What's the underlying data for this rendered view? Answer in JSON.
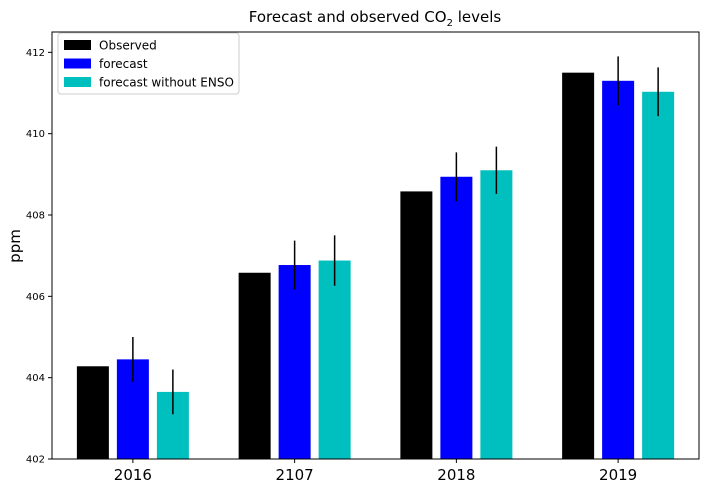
{
  "chart_data": {
    "type": "bar",
    "title_main": "Forecast and observed CO",
    "title_sub": "2",
    "title_tail": " levels",
    "xlabel": "",
    "ylabel": "ppm",
    "categories": [
      "2016",
      "2107",
      "2018",
      "2019"
    ],
    "ylim": [
      402,
      412.5
    ],
    "yticks": [
      "402",
      "404",
      "406",
      "408",
      "410",
      "412"
    ],
    "grid": false,
    "legend_position": "top-left",
    "series": [
      {
        "name": "Observed",
        "color": "#000000",
        "values": [
          404.28,
          406.58,
          408.58,
          411.5
        ],
        "errors": null
      },
      {
        "name": "forecast",
        "color": "#0000ff",
        "values": [
          404.45,
          406.77,
          408.94,
          411.3
        ],
        "errors": [
          0.55,
          0.6,
          0.6,
          0.6
        ]
      },
      {
        "name": "forecast without ENSO",
        "color": "#00bfbf",
        "values": [
          403.65,
          406.88,
          409.1,
          411.03
        ],
        "errors": [
          0.55,
          0.62,
          0.58,
          0.6
        ]
      }
    ]
  }
}
